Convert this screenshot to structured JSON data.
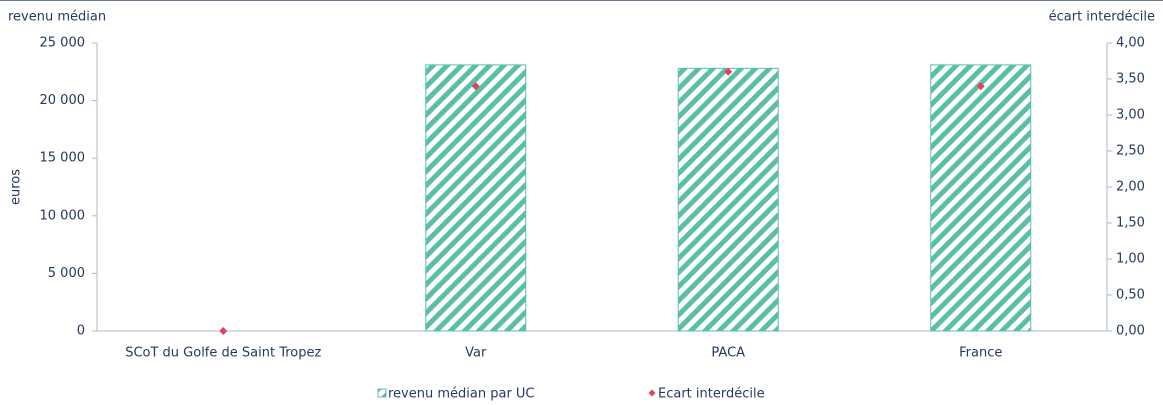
{
  "chart_data": {
    "type": "bar",
    "ylabel_top": "revenu médian",
    "y2label_top": "écart interdécile",
    "ylabel": "euros",
    "categories": [
      "SCoT du Golfe de Saint Tropez",
      "Var",
      "PACA",
      "France"
    ],
    "series": [
      {
        "name": "revenu médian par UC",
        "type": "bar",
        "color": "#5bbfa8",
        "values": [
          0,
          23100,
          22800,
          23100
        ]
      },
      {
        "name": "Ecart interdécile",
        "type": "scatter",
        "axis": "y2",
        "color": "#e0435c",
        "values": [
          0,
          3.4,
          3.6,
          3.4
        ]
      }
    ],
    "ylim": [
      0,
      25000
    ],
    "yticks": [
      0,
      {
        "value": 5000,
        "label": "5 000"
      },
      {
        "value": 10000,
        "label": "10 000"
      },
      {
        "value": 15000,
        "label": "15 000"
      },
      {
        "value": 20000,
        "label": "20 000"
      },
      {
        "value": 25000,
        "label": "25 000"
      }
    ],
    "y2lim": [
      0,
      4
    ],
    "y2ticks": [
      {
        "value": 0,
        "label": "0,00"
      },
      {
        "value": 0.5,
        "label": "0,50"
      },
      {
        "value": 1,
        "label": "1,00"
      },
      {
        "value": 1.5,
        "label": "1,50"
      },
      {
        "value": 2,
        "label": "2,00"
      },
      {
        "value": 2.5,
        "label": "2,50"
      },
      {
        "value": 3,
        "label": "3,00"
      },
      {
        "value": 3.5,
        "label": "3,50"
      },
      {
        "value": 4,
        "label": "4,00"
      }
    ],
    "grid": false,
    "legend": "bottom"
  }
}
